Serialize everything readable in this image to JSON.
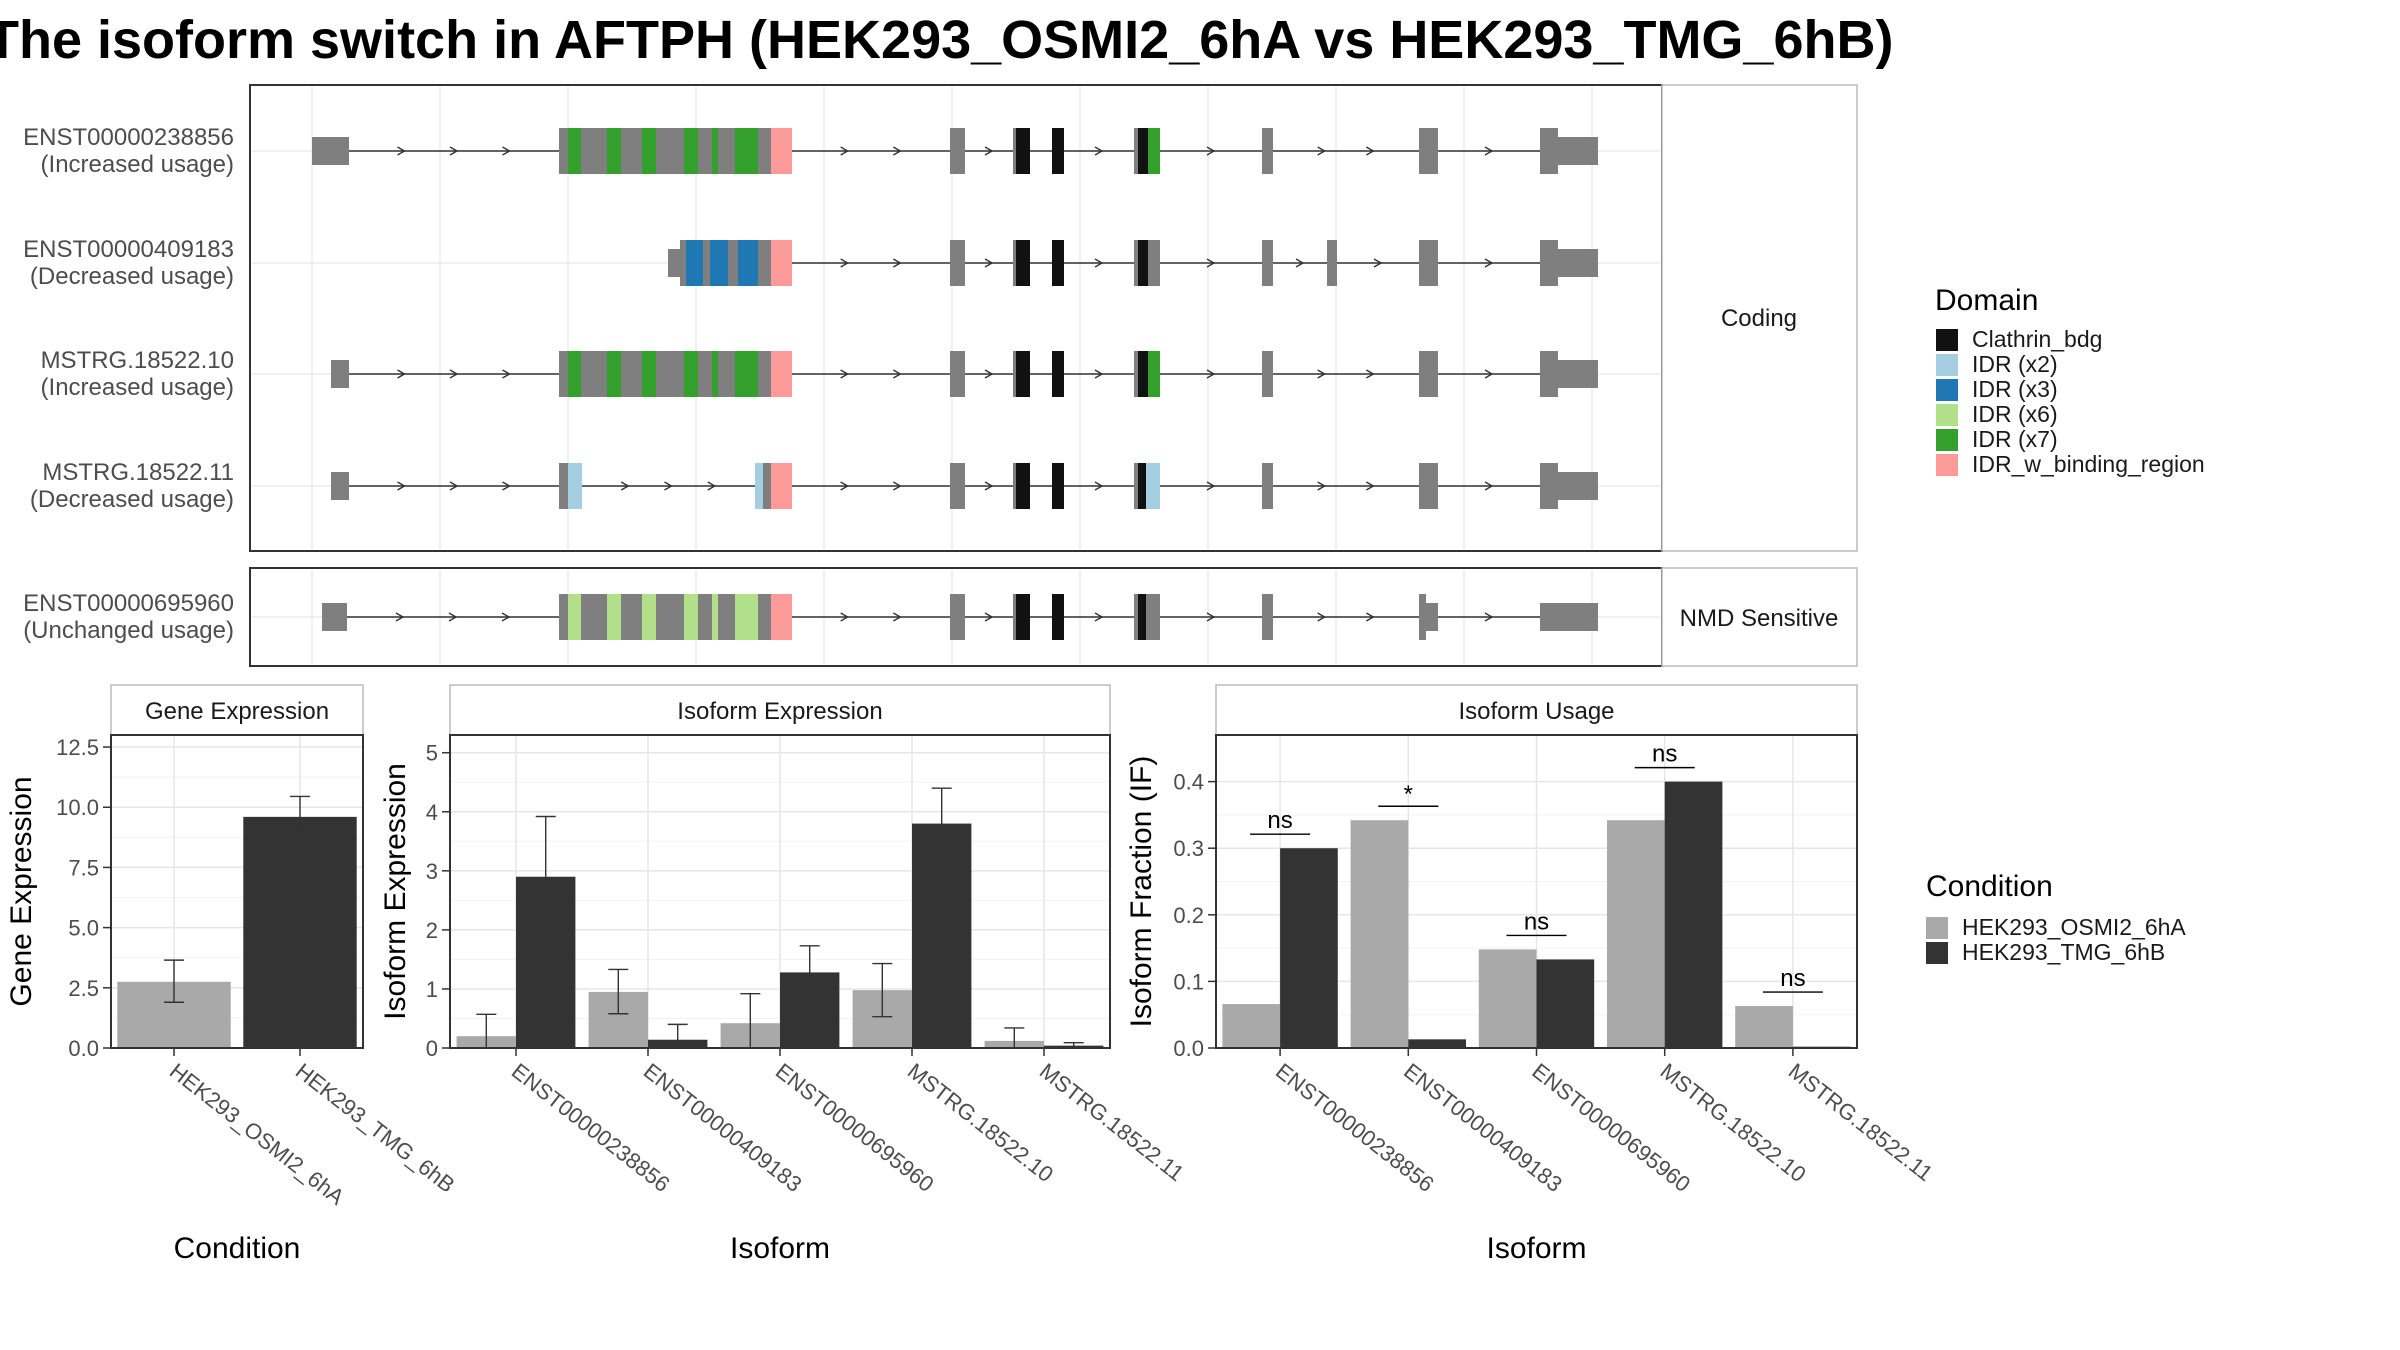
{
  "title": "The isoform switch in AFTPH (HEK293_OSMI2_6hA vs HEK293_TMG_6hB)",
  "colors": {
    "cond1": "#a9a9a9",
    "cond2": "#333333",
    "exon": "#7f7f7f",
    "Clathrin_bdg": "#111111",
    "IDR (x2)": "#a6cee3",
    "IDR (x3)": "#1f78b4",
    "IDR (x6)": "#b2df8a",
    "IDR (x7)": "#33a02c",
    "IDR_w_binding_region": "#fb9a99"
  },
  "chart_data": [
    {
      "type": "gene-structure",
      "groups": [
        {
          "label": "Coding",
          "isoforms": [
            {
              "id": "ENST00000238856",
              "usage": "(Increased usage)"
            },
            {
              "id": "ENST00000409183",
              "usage": "(Decreased usage)"
            },
            {
              "id": "MSTRG.18522.10",
              "usage": "(Increased usage)"
            },
            {
              "id": "MSTRG.18522.11",
              "usage": "(Decreased usage)"
            }
          ]
        },
        {
          "label": "NMD Sensitive",
          "isoforms": [
            {
              "id": "ENST00000695960",
              "usage": "(Unchanged usage)"
            }
          ]
        }
      ],
      "legend_title": "Domain",
      "legend": [
        "Clathrin_bdg",
        "IDR (x2)",
        "IDR (x3)",
        "IDR (x6)",
        "IDR (x7)",
        "IDR_w_binding_region"
      ]
    },
    {
      "type": "bar",
      "title": "Gene Expression",
      "xlabel": "Condition",
      "ylabel": "Gene Expression",
      "ylim": [
        0,
        13
      ],
      "yticks": [
        "0.0",
        "2.5",
        "5.0",
        "7.5",
        "10.0",
        "12.5"
      ],
      "categories": [
        "HEK293_OSMI2_6hA",
        "HEK293_TMG_6hB"
      ],
      "values": [
        2.75,
        9.6
      ],
      "errors": [
        [
          1.9,
          3.65
        ],
        [
          8.75,
          10.45
        ]
      ]
    },
    {
      "type": "bar",
      "title": "Isoform Expression",
      "xlabel": "Isoform",
      "ylabel": "Isoform Expression",
      "ylim": [
        0,
        5.3
      ],
      "yticks": [
        "0",
        "1",
        "2",
        "3",
        "4",
        "5"
      ],
      "categories": [
        "ENST00000238856",
        "ENST00000409183",
        "ENST00000695960",
        "MSTRG.18522.10",
        "MSTRG.18522.11"
      ],
      "series": [
        {
          "name": "HEK293_OSMI2_6hA",
          "values": [
            0.2,
            0.95,
            0.42,
            0.98,
            0.12
          ],
          "errors": [
            [
              0.0,
              0.57
            ],
            [
              0.58,
              1.33
            ],
            [
              0.0,
              0.92
            ],
            [
              0.53,
              1.43
            ],
            [
              0.0,
              0.34
            ]
          ]
        },
        {
          "name": "HEK293_TMG_6hB",
          "values": [
            2.9,
            0.14,
            1.28,
            3.8,
            0.04
          ],
          "errors": [
            [
              1.9,
              3.92
            ],
            [
              0.0,
              0.4
            ],
            [
              0.83,
              1.73
            ],
            [
              3.2,
              4.4
            ],
            [
              0.0,
              0.09
            ]
          ]
        }
      ]
    },
    {
      "type": "bar",
      "title": "Isoform Usage",
      "xlabel": "Isoform",
      "ylabel": "Isoform Fraction (IF)",
      "ylim": [
        0,
        0.47
      ],
      "yticks": [
        "0.0",
        "0.1",
        "0.2",
        "0.3",
        "0.4"
      ],
      "categories": [
        "ENST00000238856",
        "ENST00000409183",
        "ENST00000695960",
        "MSTRG.18522.10",
        "MSTRG.18522.11"
      ],
      "series": [
        {
          "name": "HEK293_OSMI2_6hA",
          "values": [
            0.066,
            0.342,
            0.148,
            0.342,
            0.063
          ]
        },
        {
          "name": "HEK293_TMG_6hB",
          "values": [
            0.3,
            0.013,
            0.133,
            0.4,
            0.002
          ]
        }
      ],
      "significance": [
        "ns",
        "*",
        "ns",
        "ns",
        "ns"
      ]
    }
  ],
  "condition_legend": {
    "title": "Condition",
    "items": [
      "HEK293_OSMI2_6hA",
      "HEK293_TMG_6hB"
    ]
  }
}
